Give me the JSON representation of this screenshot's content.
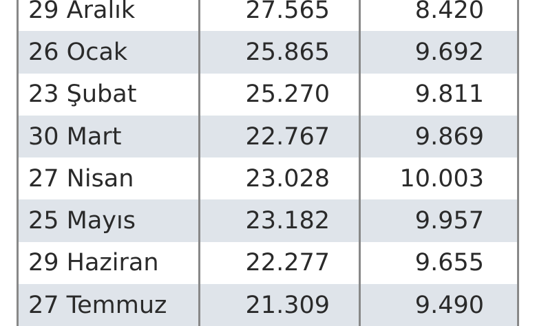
{
  "table": {
    "rows": [
      {
        "date": "29 Aralık",
        "col2": "27.565",
        "col3": "8.420"
      },
      {
        "date": "26 Ocak",
        "col2": "25.865",
        "col3": "9.692"
      },
      {
        "date": "23 Şubat",
        "col2": "25.270",
        "col3": "9.811"
      },
      {
        "date": "30 Mart",
        "col2": "22.767",
        "col3": "9.869"
      },
      {
        "date": "27 Nisan",
        "col2": "23.028",
        "col3": "10.003"
      },
      {
        "date": "25 Mayıs",
        "col2": "23.182",
        "col3": "9.957"
      },
      {
        "date": "29 Haziran",
        "col2": "22.277",
        "col3": "9.655"
      },
      {
        "date": "27 Temmuz",
        "col2": "21.309",
        "col3": "9.490"
      }
    ],
    "stripe_color": "#dfe4ea"
  }
}
